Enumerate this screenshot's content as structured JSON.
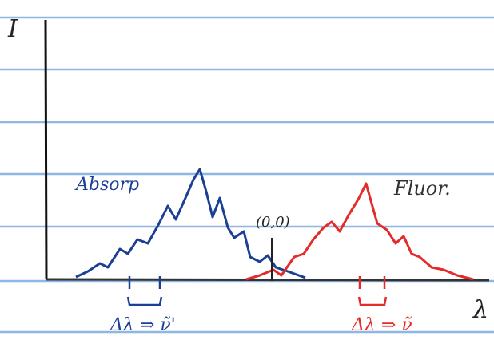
{
  "axes": {
    "y_label": "I",
    "x_label": "λ"
  },
  "curves": [
    {
      "label": "Absorp"
    },
    {
      "label": "Fluor."
    }
  ],
  "origin_label": "(0,0)",
  "annotations": [
    {
      "text": "Δλ ⇒ ν̃'"
    },
    {
      "text": "Δλ ⇒ ν̃"
    }
  ]
}
